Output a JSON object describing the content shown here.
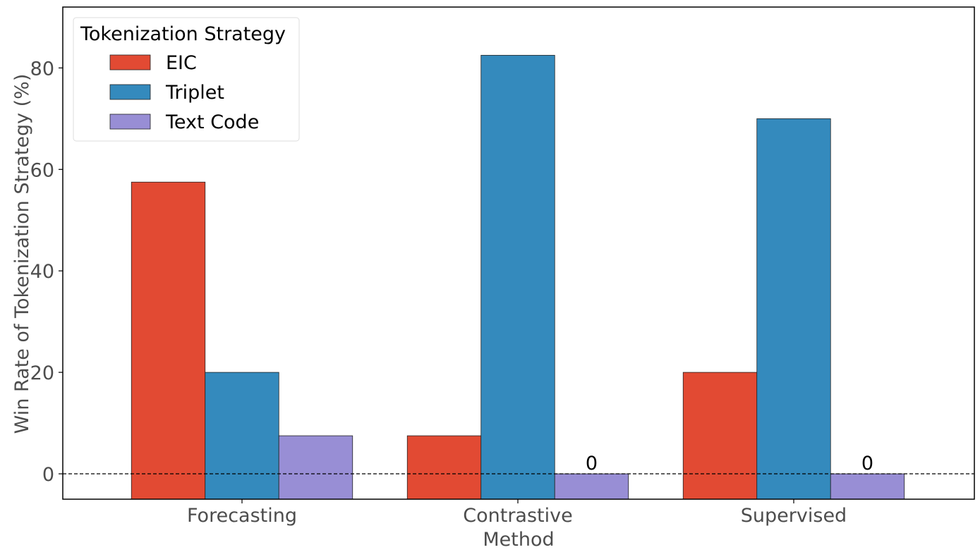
{
  "chart_data": {
    "type": "bar",
    "categories": [
      "Forecasting",
      "Contrastive",
      "Supervised"
    ],
    "series": [
      {
        "name": "EIC",
        "color": "#e24a33",
        "values": [
          57.5,
          7.5,
          20
        ]
      },
      {
        "name": "Triplet",
        "color": "#348abd",
        "values": [
          20,
          82.5,
          70
        ]
      },
      {
        "name": "Text Code",
        "color": "#988ed5",
        "values": [
          7.5,
          0,
          0
        ]
      }
    ],
    "xlabel": "Method",
    "ylabel": "Win Rate of Tokenization Strategy (%)",
    "ylim": [
      -5,
      92
    ],
    "yticks": [
      0,
      20,
      40,
      60,
      80
    ],
    "legend": {
      "title": "Tokenization Strategy",
      "position": "top-left"
    },
    "reference_line": {
      "y": 0,
      "style": "dashed"
    },
    "zero_value_labels": "0",
    "grid": false
  }
}
